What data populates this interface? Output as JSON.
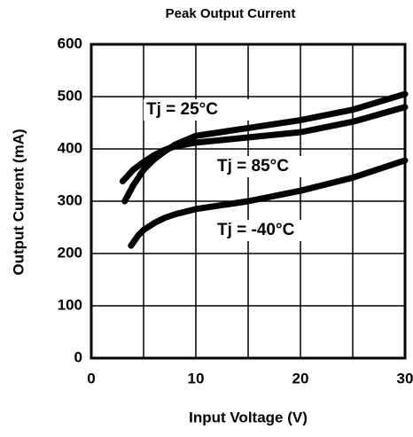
{
  "chart_data": {
    "type": "line",
    "title": "Peak Output Current",
    "xlabel": "Input Voltage (V)",
    "ylabel": "Output Current (mA)",
    "xlim": [
      0,
      30
    ],
    "xticks": [
      0,
      10,
      20,
      30
    ],
    "xminor": [
      5,
      15,
      25
    ],
    "ylim": [
      0,
      600
    ],
    "yticks": [
      0,
      100,
      200,
      300,
      400,
      500,
      600
    ],
    "grid": true,
    "series": [
      {
        "name": "Tj = 25°C",
        "color": "#000000",
        "x": [
          3.2,
          4,
          5,
          6,
          7,
          8,
          10,
          15,
          20,
          25,
          30
        ],
        "values": [
          300,
          330,
          360,
          380,
          395,
          408,
          425,
          440,
          455,
          475,
          505
        ]
      },
      {
        "name": "Tj = 85°C",
        "color": "#000000",
        "x": [
          3,
          4,
          5,
          6,
          7,
          8,
          10,
          15,
          20,
          25,
          30
        ],
        "values": [
          338,
          360,
          375,
          388,
          398,
          405,
          412,
          422,
          432,
          452,
          480
        ]
      },
      {
        "name": "Tj = -40°C",
        "color": "#000000",
        "x": [
          3.8,
          4.5,
          5,
          6,
          7,
          8,
          10,
          15,
          20,
          25,
          30
        ],
        "values": [
          215,
          235,
          245,
          258,
          268,
          275,
          285,
          300,
          320,
          345,
          378
        ]
      }
    ]
  }
}
